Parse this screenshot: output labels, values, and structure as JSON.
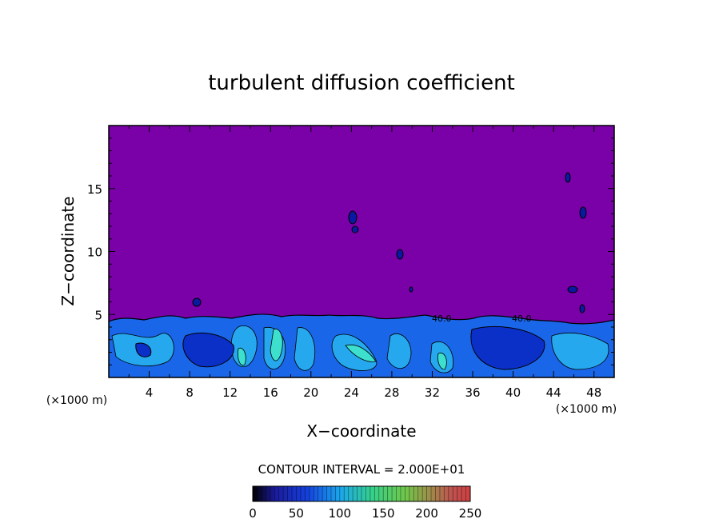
{
  "chart_data": {
    "type": "heatmap",
    "title": "turbulent diffusion coefficient",
    "xlabel": "X−coordinate",
    "ylabel": "Z−coordinate",
    "x_unit_left": "(×1000 m)",
    "x_unit_right": "(×1000 m)",
    "xlim": [
      0,
      50
    ],
    "ylim": [
      0,
      20
    ],
    "x_ticks": [
      4,
      8,
      12,
      16,
      20,
      24,
      28,
      32,
      36,
      40,
      44,
      48
    ],
    "y_ticks": [
      5,
      10,
      15
    ],
    "contour_interval_text": "CONTOUR INTERVAL = 2.000E+01",
    "contour_interval": 20,
    "colorbar": {
      "min": 0,
      "max": 250,
      "ticks": [
        0,
        50,
        100,
        150,
        200,
        250
      ]
    },
    "contour_labels": [
      "40.0",
      "40.0"
    ],
    "background_value": 0,
    "colors": {
      "background_field": "#7a00a8",
      "low": "#0044dd",
      "mid": "#1aa6ee",
      "high": "#33ddcc"
    }
  }
}
